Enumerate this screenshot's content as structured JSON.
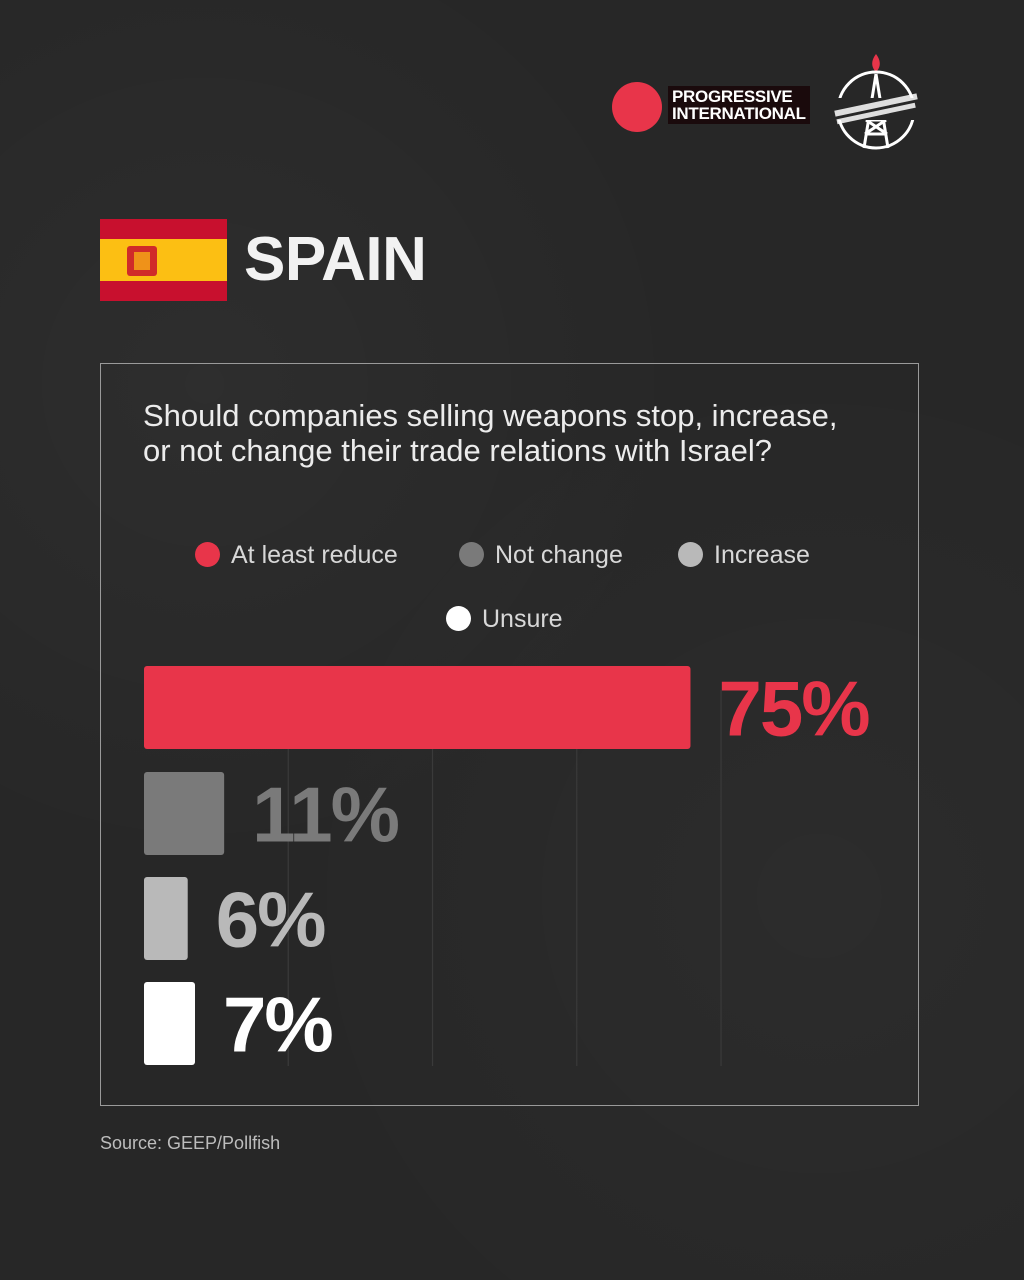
{
  "header": {
    "logo_line1": "PROGRESSIVE",
    "logo_line2": "INTERNATIONAL",
    "brand_color": "#e8354a"
  },
  "title": {
    "country": "SPAIN"
  },
  "source": "Source: GEEP/Pollfish",
  "chart_data": {
    "type": "bar",
    "orientation": "horizontal",
    "title": "Should companies selling weapons stop, increase, or not change their trade relations with Israel?",
    "categories": [
      "At least reduce",
      "Not change",
      "Increase",
      "Unsure"
    ],
    "values": [
      75,
      11,
      6,
      7
    ],
    "value_labels": [
      "75%",
      "11%",
      "6%",
      "7%"
    ],
    "colors": [
      "#e8354a",
      "#7a7a7a",
      "#b9b9b9",
      "#ffffff"
    ],
    "xlim": [
      0,
      100
    ],
    "grid": true,
    "legend": "top"
  }
}
